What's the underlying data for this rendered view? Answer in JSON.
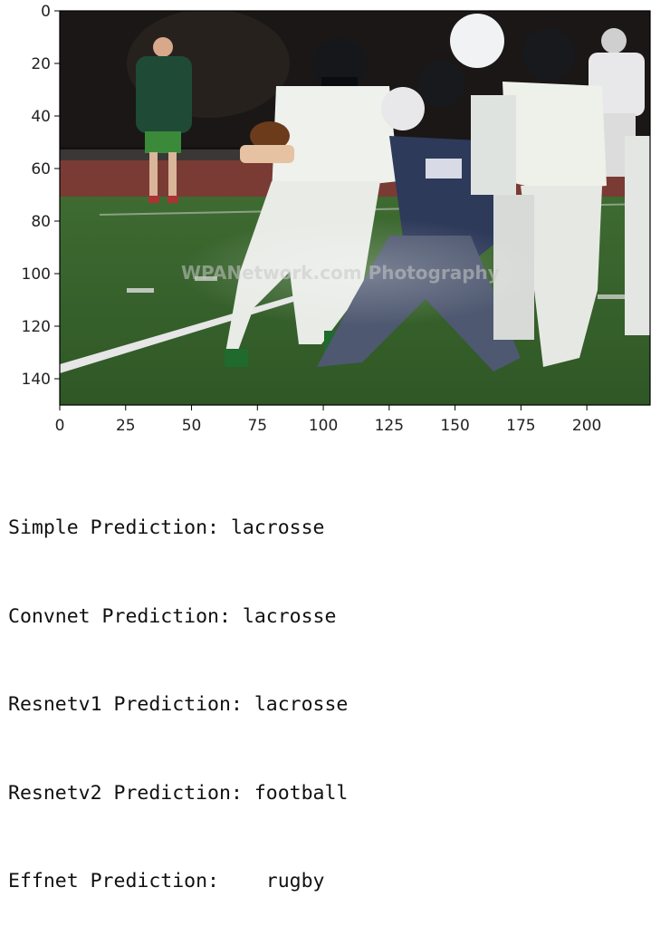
{
  "chart_data": {
    "type": "image",
    "x_ticks": [
      "0",
      "25",
      "50",
      "75",
      "100",
      "125",
      "150",
      "175",
      "200"
    ],
    "y_ticks": [
      "0",
      "20",
      "40",
      "60",
      "80",
      "100",
      "120",
      "140"
    ],
    "xlim": [
      0,
      224
    ],
    "ylim": [
      150,
      0
    ],
    "watermark": "WPANetwork.com Photography"
  },
  "output": {
    "lines": [
      "Simple Prediction: lacrosse",
      "Convnet Prediction: lacrosse",
      "Resnetv1 Prediction: lacrosse",
      "Resnetv2 Prediction: football",
      "Effnet Prediction:    rugby"
    ]
  }
}
